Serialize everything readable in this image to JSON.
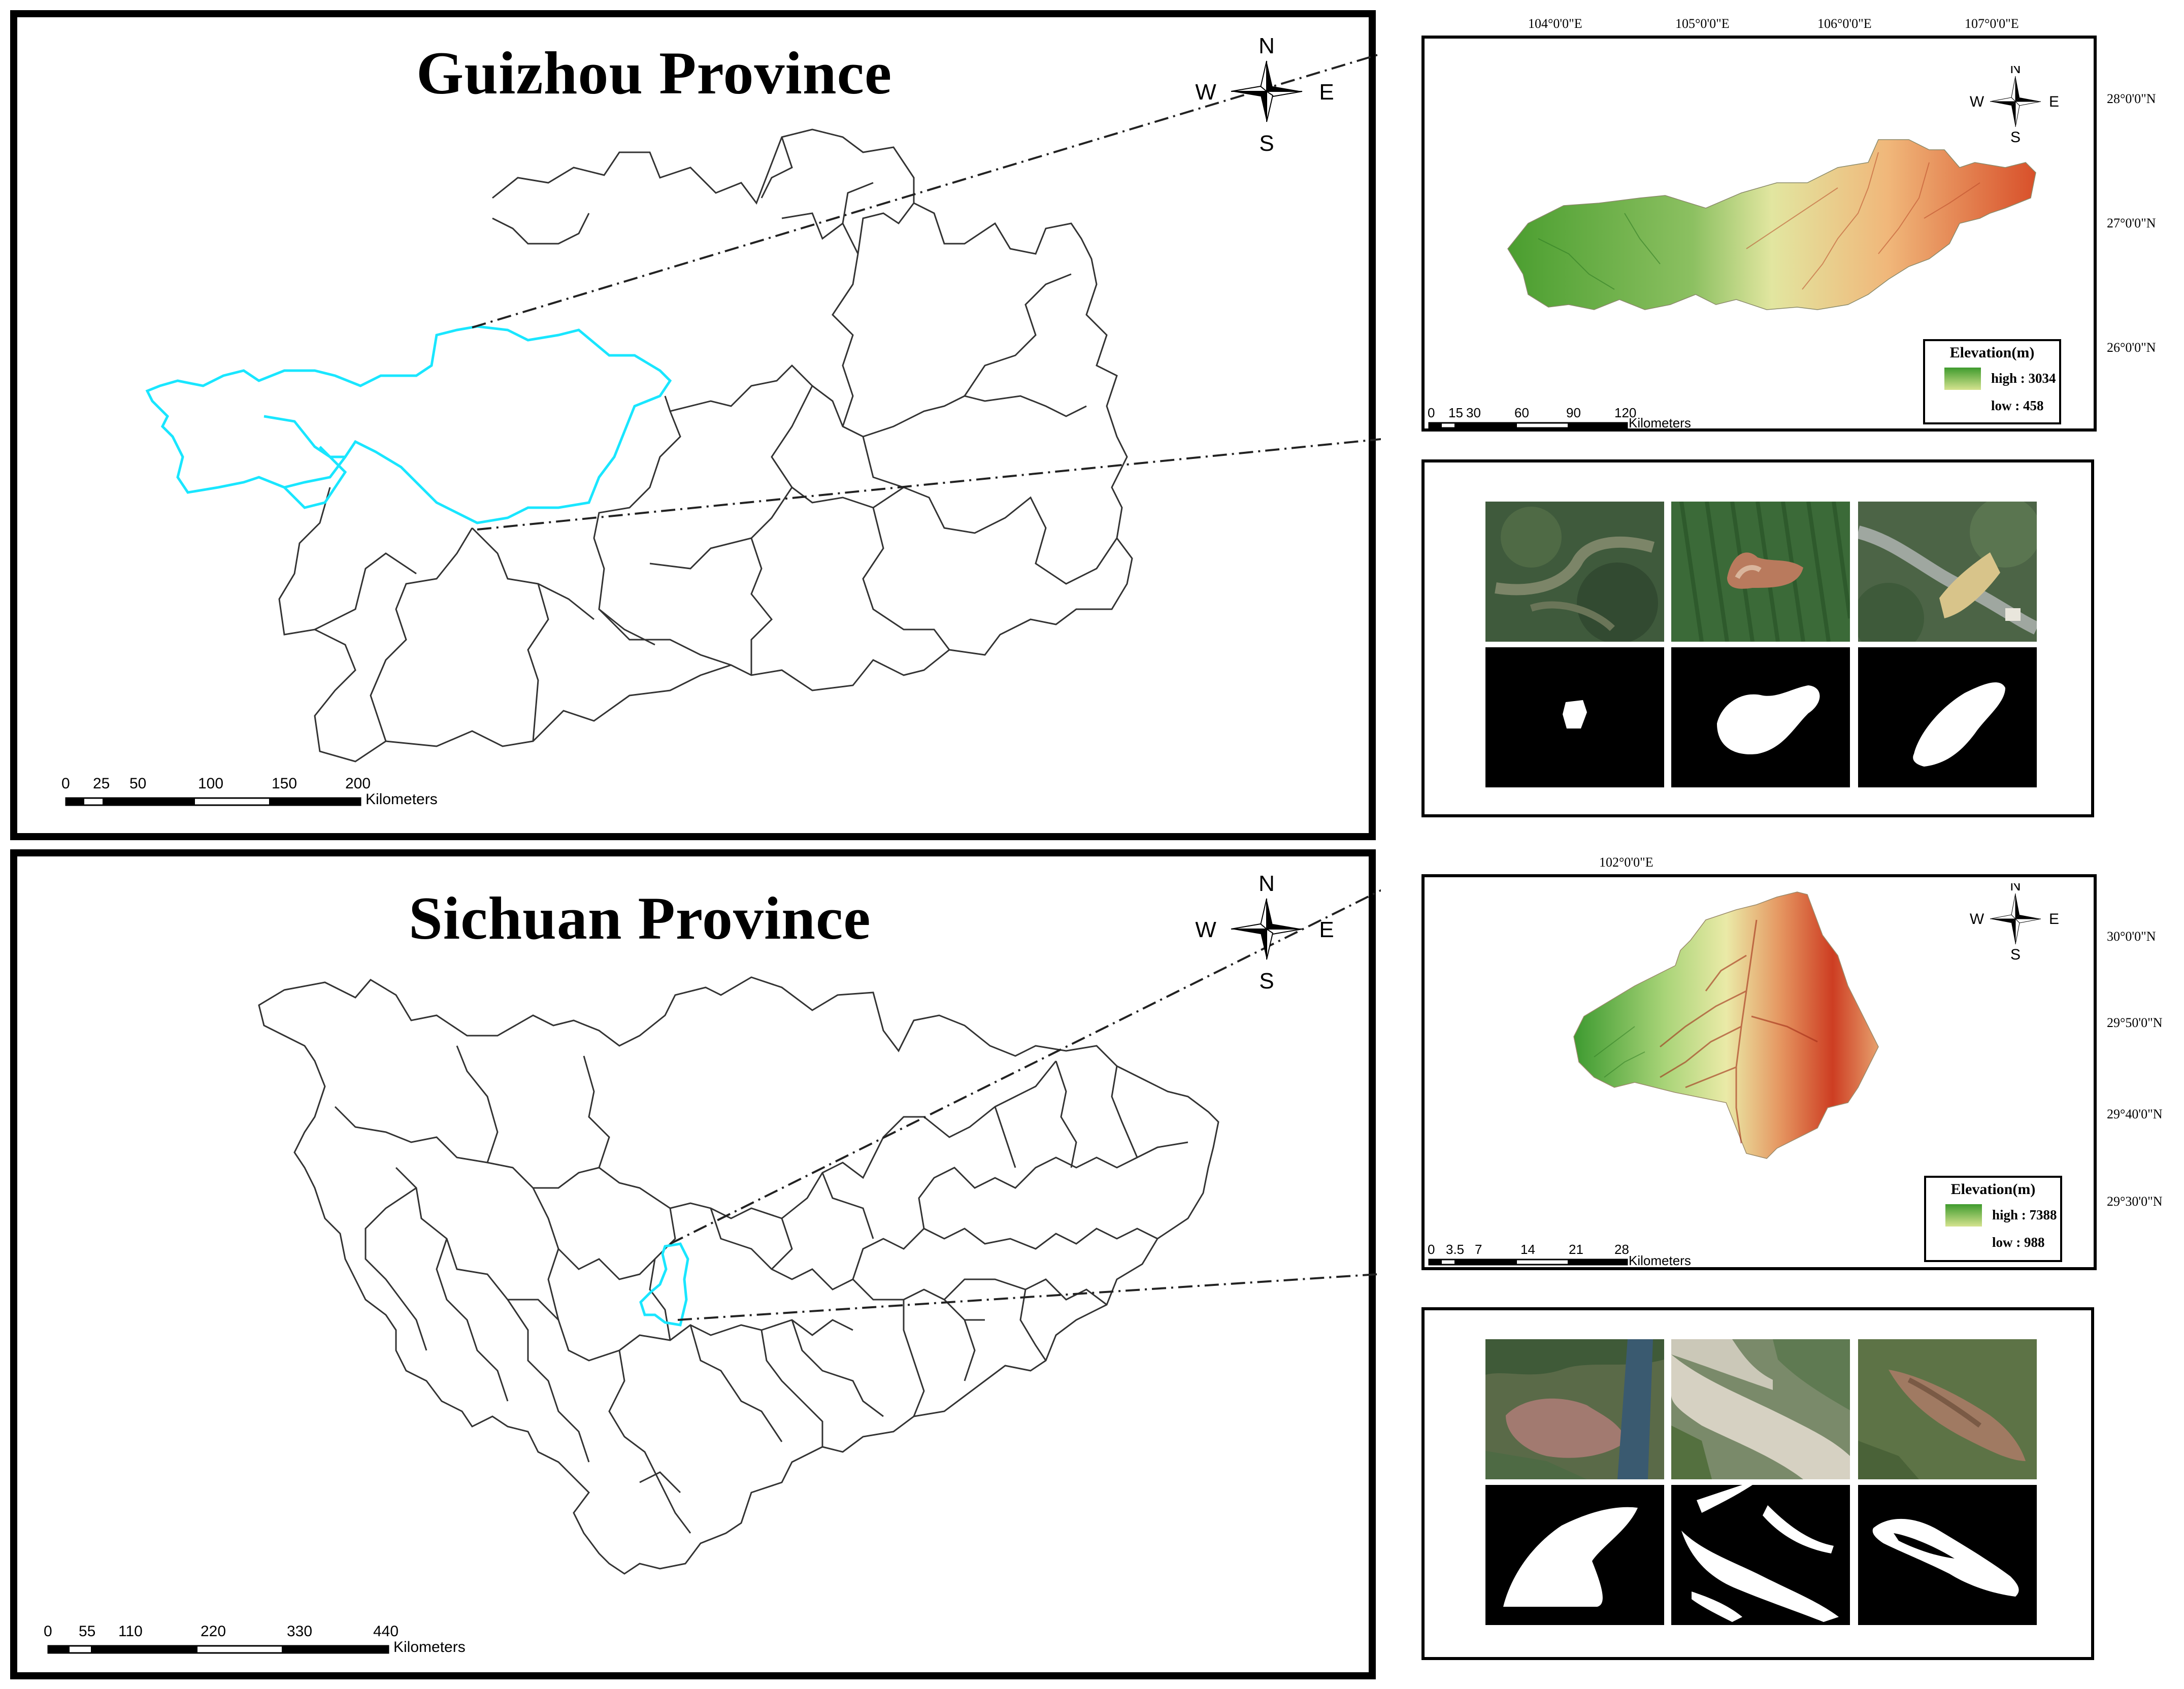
{
  "guizhou": {
    "title": "Guizhou Province",
    "compass": {
      "n": "N",
      "s": "S",
      "e": "E",
      "w": "W"
    },
    "scale_labels": [
      "0",
      "25",
      "50",
      "100",
      "150",
      "200"
    ],
    "scale_unit": "Kilometers",
    "highlight_color": "#00e5ff",
    "dem": {
      "lon_labels": [
        "104°0'0\"E",
        "105°0'0\"E",
        "106°0'0\"E",
        "107°0'0\"E"
      ],
      "lat_labels": [
        "28°0'0\"N",
        "27°0'0\"N",
        "26°0'0\"N"
      ],
      "legend_title": "Elevation(m)",
      "high": "high : 3034",
      "low": "low : 458",
      "scale_labels": [
        "0",
        "15",
        "30",
        "60",
        "90",
        "120"
      ],
      "scale_unit": "Kilometers",
      "compass": {
        "n": "N",
        "s": "S",
        "e": "E",
        "w": "W"
      }
    }
  },
  "sichuan": {
    "title": "Sichuan Province",
    "compass": {
      "n": "N",
      "s": "S",
      "e": "E",
      "w": "W"
    },
    "scale_labels": [
      "0",
      "55",
      "110",
      "220",
      "330",
      "440"
    ],
    "scale_unit": "Kilometers",
    "highlight_color": "#00e5ff",
    "dem": {
      "lon_labels": [
        "102°0'0\"E"
      ],
      "lat_labels": [
        "30°0'0\"N",
        "29°50'0\"N",
        "29°40'0\"N",
        "29°30'0\"N"
      ],
      "legend_title": "Elevation(m)",
      "high": "high : 7388",
      "low": "low : 988",
      "scale_labels": [
        "0",
        "3.5",
        "7",
        "14",
        "21",
        "28"
      ],
      "scale_unit": "Kilometers",
      "compass": {
        "n": "N",
        "s": "S",
        "e": "E",
        "w": "W"
      }
    }
  },
  "colors": {
    "dem_high": "#3f9b2e",
    "dem_mid": "#e8e79a",
    "dem_low": "#c8321e"
  }
}
